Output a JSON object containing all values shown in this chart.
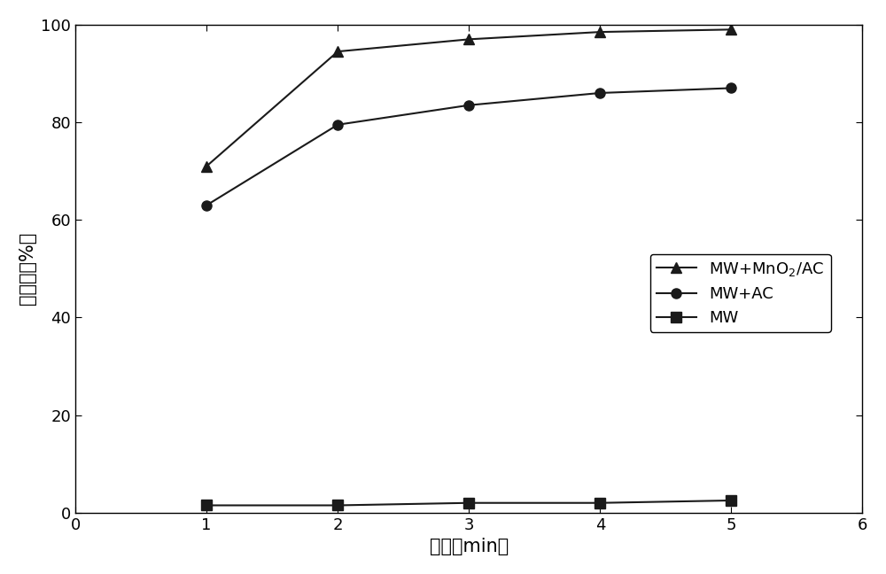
{
  "x": [
    1,
    2,
    3,
    4,
    5
  ],
  "series": [
    {
      "label": "MW+MnO$_2$/AC",
      "y": [
        71,
        94.5,
        97,
        98.5,
        99
      ],
      "marker": "^",
      "color": "#1a1a1a",
      "linestyle": "-"
    },
    {
      "label": "MW+AC",
      "y": [
        63,
        79.5,
        83.5,
        86,
        87
      ],
      "marker": "o",
      "color": "#1a1a1a",
      "linestyle": "-"
    },
    {
      "label": "MW",
      "y": [
        1.5,
        1.5,
        2,
        2,
        2.5
      ],
      "marker": "s",
      "color": "#1a1a1a",
      "linestyle": "-"
    }
  ],
  "xlabel": "时间（min）",
  "ylabel": "降解率（%）",
  "xlim": [
    0,
    6
  ],
  "ylim": [
    0,
    100
  ],
  "xticks": [
    0,
    1,
    2,
    3,
    4,
    5,
    6
  ],
  "yticks": [
    0,
    20,
    40,
    60,
    80,
    100
  ],
  "background_color": "#ffffff",
  "marker_size": 8,
  "linewidth": 1.5,
  "xlabel_fontsize": 15,
  "ylabel_fontsize": 15,
  "tick_fontsize": 13,
  "legend_fontsize": 13
}
